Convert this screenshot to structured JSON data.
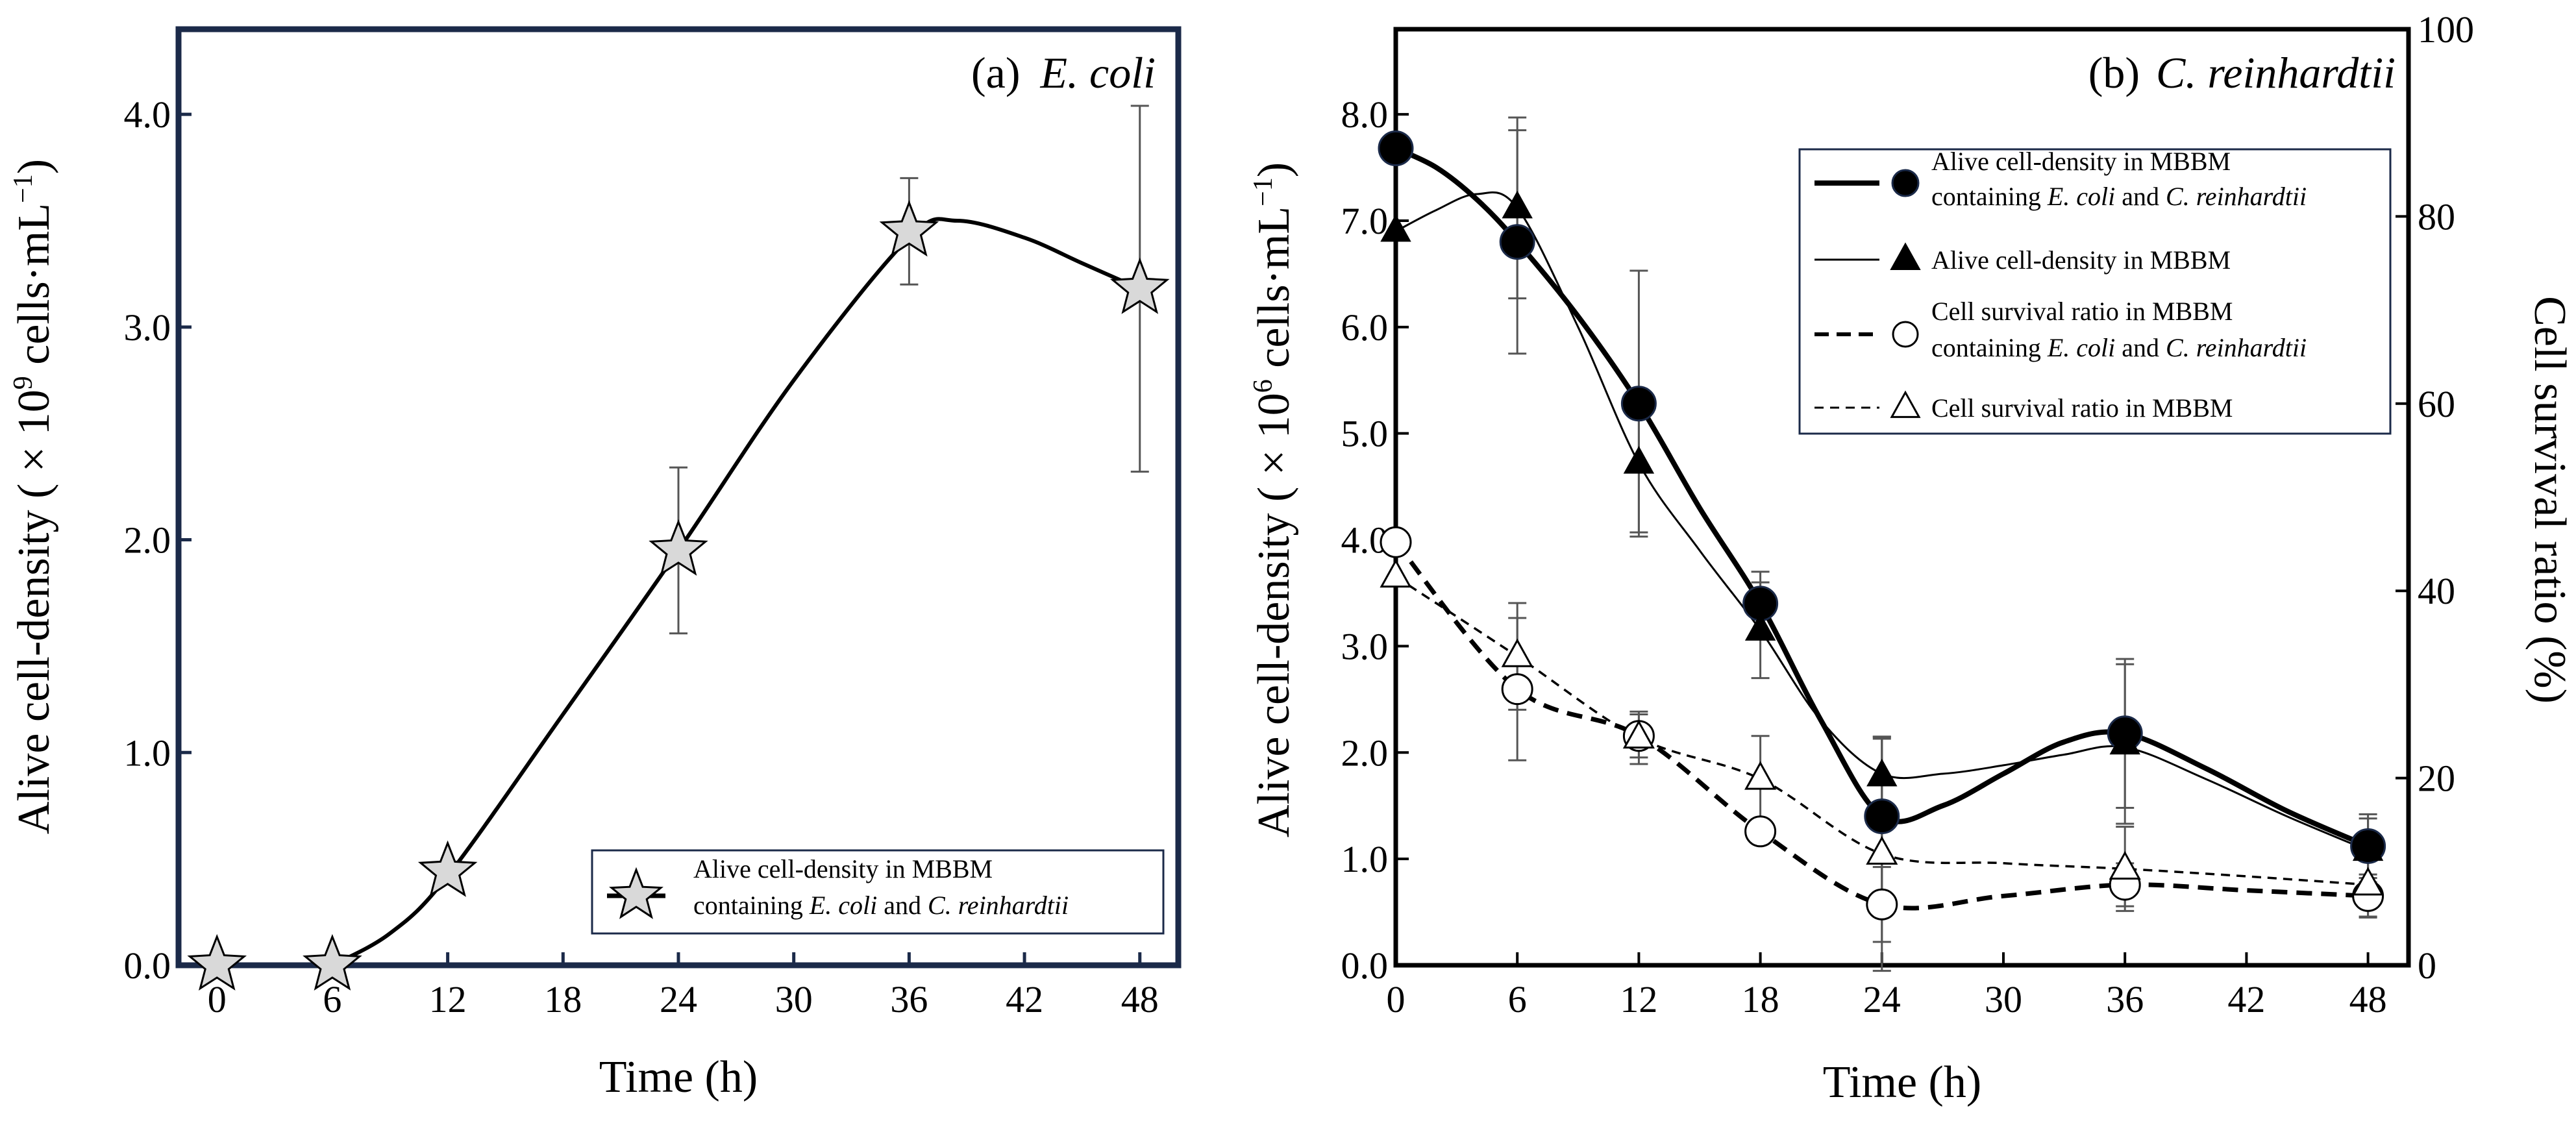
{
  "chart_data": [
    {
      "type": "line",
      "panel_label": "(a)",
      "panel_organism": "E. coli",
      "xlabel": "Time (h)",
      "ylabel": "Alive cell-density ( × 10",
      "ylabel_exp": "9",
      "ylabel_unit": " cells·mL",
      "ylabel_unit_exp": "−1",
      "ylabel_close": ")",
      "xlim": [
        -2,
        50
      ],
      "ylim": [
        0,
        4.4
      ],
      "xticks": [
        0,
        6,
        12,
        18,
        24,
        30,
        36,
        42,
        48
      ],
      "xtick_labels": [
        "0",
        "6",
        "12",
        "18",
        "24",
        "30",
        "36",
        "42",
        "48"
      ],
      "yticks": [
        0,
        1,
        2,
        3,
        4
      ],
      "ytick_labels": [
        "0.0",
        "1.0",
        "2.0",
        "3.0",
        "4.0"
      ],
      "legend_position": "bottom-right",
      "grid": false,
      "series": [
        {
          "legend_line1": "Alive cell-density in MBBM",
          "legend_line2_pre": "containing ",
          "legend_line2_it1": "E. coli",
          "legend_line2_mid": " and ",
          "legend_line2_it2": "C. reinhardtii",
          "marker": "star",
          "x": [
            0,
            6,
            12,
            24,
            36,
            48
          ],
          "y": [
            0.0,
            0.0,
            0.44,
            1.95,
            3.45,
            3.18
          ],
          "err": [
            0,
            0,
            0,
            0.39,
            0.25,
            0.86
          ],
          "curve_x": [
            6,
            9,
            12,
            18,
            24,
            30,
            36,
            38.5,
            42,
            45,
            48
          ],
          "curve_y": [
            0.0,
            0.15,
            0.42,
            1.18,
            1.95,
            2.75,
            3.42,
            3.5,
            3.42,
            3.3,
            3.18
          ]
        }
      ]
    },
    {
      "type": "line",
      "panel_label": "(b)",
      "panel_organism": "C. reinhardtii",
      "xlabel": "Time (h)",
      "ylabel": "Alive cell-density ( × 10",
      "ylabel_exp": "6",
      "ylabel_unit": " cells·mL",
      "ylabel_unit_exp": "−1",
      "ylabel_close": ")",
      "ylabel_right": "Cell survival ratio (%)",
      "xlim": [
        0,
        50
      ],
      "ylim": [
        0,
        8.8
      ],
      "ylim_right": [
        0,
        100
      ],
      "xticks": [
        0,
        6,
        12,
        18,
        24,
        30,
        36,
        42,
        48
      ],
      "xtick_labels": [
        "0",
        "6",
        "12",
        "18",
        "24",
        "30",
        "36",
        "42",
        "48"
      ],
      "yticks": [
        0,
        1,
        2,
        3,
        4,
        5,
        6,
        7,
        8
      ],
      "ytick_labels": [
        "0.0",
        "1.0",
        "2.0",
        "3.0",
        "4.0",
        "5.0",
        "6.0",
        "7.0",
        "8.0"
      ],
      "yticks_right": [
        0,
        20,
        40,
        60,
        80,
        100
      ],
      "ytick_labels_right": [
        "0",
        "20",
        "40",
        "60",
        "80",
        "100"
      ],
      "legend_position": "top-right",
      "grid": false,
      "series": [
        {
          "legend_line1": "Alive cell-density in MBBM",
          "legend_line2_pre": "containing ",
          "legend_line2_it1": "E. coli",
          "legend_line2_mid": " and ",
          "legend_line2_it2": "C. reinhardtii",
          "marker": "filled-circle",
          "line": "thick-solid",
          "axis": "left",
          "x": [
            0,
            6,
            12,
            18,
            24,
            36,
            48
          ],
          "y": [
            7.68,
            6.8,
            5.28,
            3.4,
            1.4,
            2.18,
            1.12
          ],
          "err": [
            0,
            1.05,
            1.25,
            0.3,
            0.75,
            0.7,
            0.3
          ],
          "curve_x": [
            0,
            2,
            4,
            6,
            9,
            12,
            15,
            18,
            21,
            24,
            27,
            30,
            33,
            36,
            40,
            44,
            48
          ],
          "curve_y": [
            7.68,
            7.5,
            7.2,
            6.8,
            6.1,
            5.28,
            4.3,
            3.4,
            2.3,
            1.4,
            1.5,
            1.8,
            2.1,
            2.18,
            1.85,
            1.45,
            1.12
          ]
        },
        {
          "legend_line1": "Alive cell-density in MBBM",
          "marker": "filled-triangle",
          "line": "thin-solid",
          "axis": "left",
          "x": [
            0,
            6,
            12,
            18,
            24,
            36,
            48
          ],
          "y": [
            6.9,
            7.12,
            4.72,
            3.15,
            1.78,
            2.08,
            1.08
          ],
          "err": [
            0,
            0.85,
            0.65,
            0.45,
            0.35,
            0.75,
            0.3
          ],
          "curve_x": [
            0,
            2,
            4,
            6,
            9,
            12,
            15,
            18,
            21,
            24,
            27,
            30,
            33,
            36,
            40,
            44,
            48
          ],
          "curve_y": [
            6.9,
            7.1,
            7.25,
            7.12,
            6.0,
            4.72,
            3.9,
            3.15,
            2.3,
            1.8,
            1.8,
            1.88,
            1.98,
            2.05,
            1.75,
            1.4,
            1.08
          ]
        },
        {
          "legend_line1": "Cell survival ratio in MBBM",
          "legend_line2_pre": "containing ",
          "legend_line2_it1": "E. coli",
          "legend_line2_mid": " and ",
          "legend_line2_it2": "C. reinhardtii",
          "marker": "open-circle",
          "line": "thick-dashed",
          "axis": "right",
          "x": [
            0,
            6,
            12,
            18,
            24,
            36,
            48
          ],
          "y": [
            45.2,
            29.5,
            24.5,
            14.3,
            6.5,
            8.6,
            7.4
          ],
          "err": [
            0,
            7.6,
            2.3,
            0,
            4.0,
            2.3,
            2.3
          ],
          "curve_x": [
            0,
            6,
            12,
            18,
            24,
            30,
            36,
            42,
            48
          ],
          "curve_y": [
            45.2,
            29.5,
            24.5,
            14.3,
            6.5,
            7.4,
            8.6,
            8.0,
            7.4
          ]
        },
        {
          "legend_line1": "Cell survival ratio in MBBM",
          "marker": "open-triangle",
          "line": "thin-dashed",
          "axis": "right",
          "x": [
            0,
            6,
            12,
            18,
            24,
            36,
            48
          ],
          "y": [
            41.5,
            33.0,
            24.3,
            19.9,
            11.9,
            10.3,
            8.6
          ],
          "err": [
            0,
            5.7,
            2.8,
            4.6,
            12.5,
            4.5,
            3.4
          ],
          "curve_x": [
            0,
            6,
            12,
            18,
            24,
            30,
            36,
            42,
            48
          ],
          "curve_y": [
            41.5,
            33.0,
            24.3,
            19.9,
            11.9,
            10.9,
            10.3,
            9.5,
            8.6
          ]
        }
      ]
    }
  ]
}
